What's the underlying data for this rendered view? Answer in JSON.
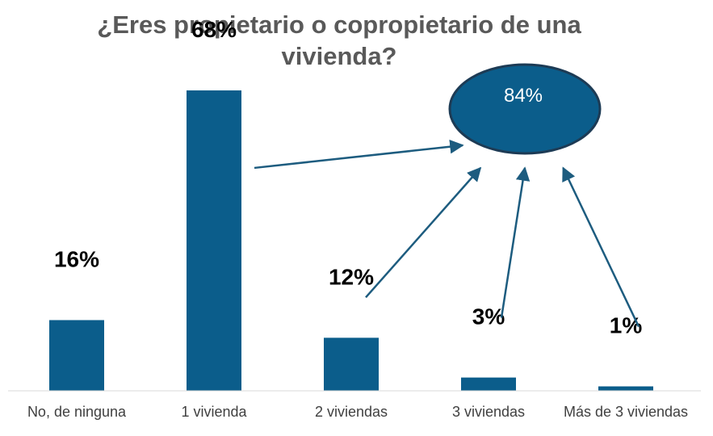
{
  "colors": {
    "bar": "#0b5d8b",
    "arrow": "#1d5c7f",
    "ellipse_fill": "#0b5d8b",
    "ellipse_stroke": "#1d3b55",
    "title": "#595959"
  },
  "chart_data": {
    "type": "bar",
    "title_lines": [
      "¿Eres propietario o copropietario de una",
      "vivienda?"
    ],
    "xlabel": "",
    "ylabel": "",
    "ylim": [
      0,
      70
    ],
    "grid": false,
    "categories": [
      "No, de ninguna",
      "1 vivienda",
      "2 viviendas",
      "3 viviendas",
      "Más de 3 viviendas"
    ],
    "values": [
      16,
      68,
      12,
      3,
      1
    ],
    "data_labels": [
      "16%",
      "68%",
      "12%",
      "3%",
      "1%"
    ],
    "annotation": {
      "text": "84%",
      "points_from": [
        "1 vivienda",
        "2 viviendas",
        "3 viviendas",
        "Más de 3 viviendas"
      ]
    }
  }
}
